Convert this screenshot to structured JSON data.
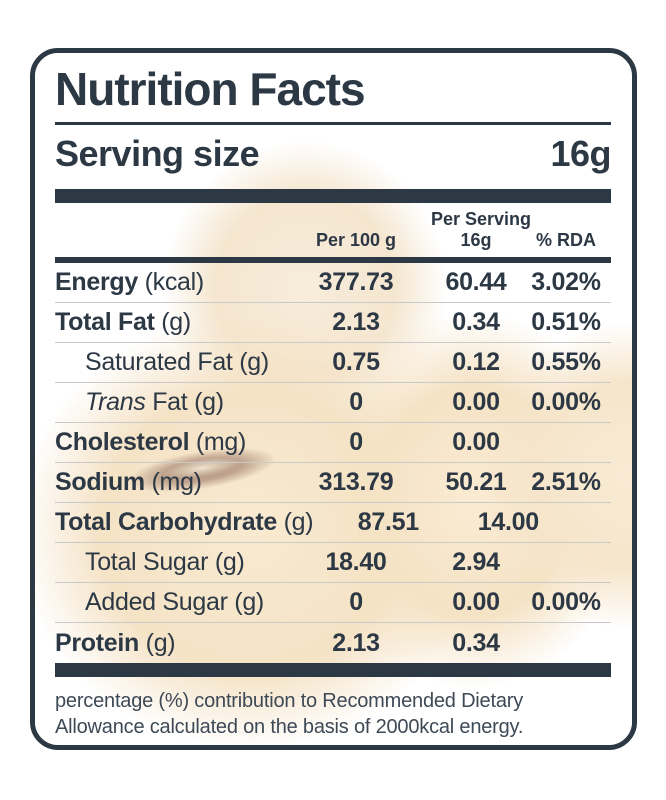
{
  "title": "Nutrition Facts",
  "serving": {
    "label": "Serving size",
    "value": "16g"
  },
  "table": {
    "columns": [
      {
        "label": "Per 100 g",
        "sub": ""
      },
      {
        "label": "Per Serving",
        "sub": "16g"
      },
      {
        "label": "% RDA",
        "sub": ""
      }
    ],
    "rows": [
      {
        "name": "Energy",
        "unit": "(kcal)",
        "sub": false,
        "italic_prefix": "",
        "values": [
          "377.73",
          "60.44",
          "3.02%"
        ]
      },
      {
        "name": "Total Fat",
        "unit": "(g)",
        "sub": false,
        "italic_prefix": "",
        "values": [
          "2.13",
          "0.34",
          "0.51%"
        ]
      },
      {
        "name": "Saturated Fat",
        "unit": "(g)",
        "sub": true,
        "italic_prefix": "",
        "values": [
          "0.75",
          "0.12",
          "0.55%"
        ]
      },
      {
        "name": "Fat",
        "unit": "(g)",
        "sub": true,
        "italic_prefix": "Trans",
        "values": [
          "0",
          "0.00",
          "0.00%"
        ]
      },
      {
        "name": "Cholesterol",
        "unit": "(mg)",
        "sub": false,
        "italic_prefix": "",
        "values": [
          "0",
          "0.00",
          ""
        ]
      },
      {
        "name": "Sodium",
        "unit": "(mg)",
        "sub": false,
        "italic_prefix": "",
        "values": [
          "313.79",
          "50.21",
          "2.51%"
        ]
      },
      {
        "name": "Total Carbohydrate",
        "unit": "(g)",
        "sub": false,
        "italic_prefix": "",
        "values": [
          "87.51",
          "14.00",
          ""
        ]
      },
      {
        "name": "Total Sugar",
        "unit": "(g)",
        "sub": true,
        "italic_prefix": "",
        "values": [
          "18.40",
          "2.94",
          ""
        ]
      },
      {
        "name": "Added Sugar",
        "unit": "(g)",
        "sub": true,
        "italic_prefix": "",
        "values": [
          "0",
          "0.00",
          "0.00%"
        ]
      },
      {
        "name": "Protein",
        "unit": "(g)",
        "sub": false,
        "italic_prefix": "",
        "values": [
          "2.13",
          "0.34",
          ""
        ]
      }
    ]
  },
  "footnote": "percentage (%) contribution to Recommended Dietary Allowance calculated on the basis of 2000kcal energy.",
  "colors": {
    "ink": "#2d3845",
    "separator": "#c9c9c9",
    "fruit_tan": "#eed0a0",
    "footnote_ink": "#3e4956"
  }
}
